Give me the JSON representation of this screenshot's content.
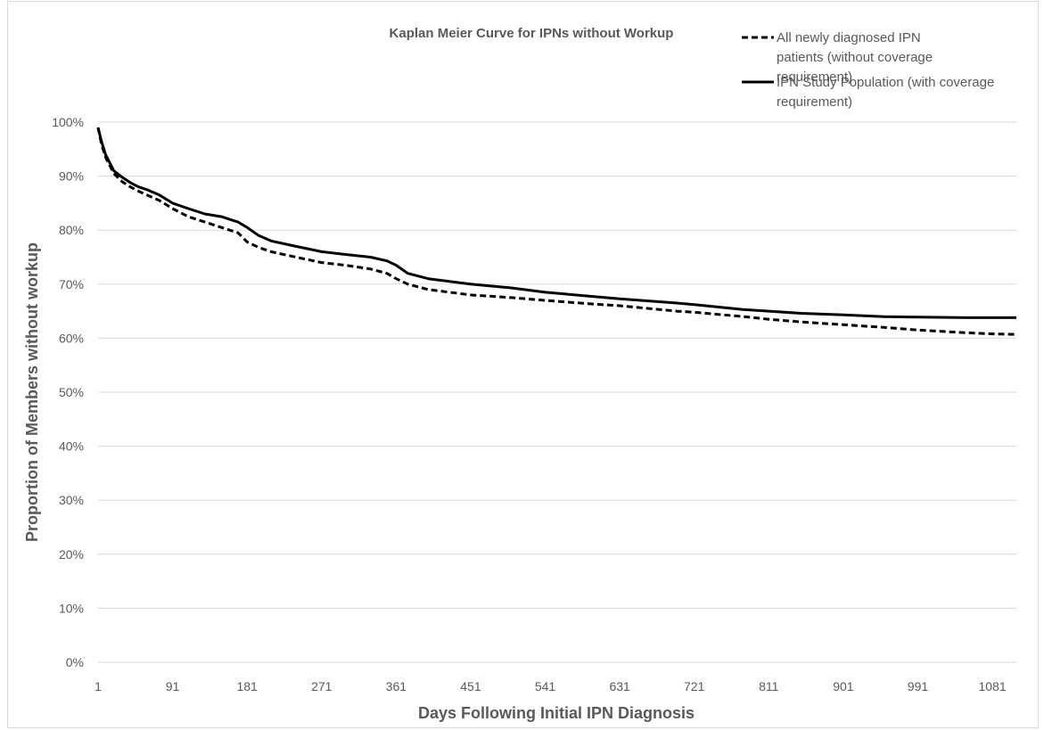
{
  "chart_data": {
    "type": "line",
    "title": "Kaplan Meier Curve for IPNs without Workup",
    "xlabel": "Days Following Initial IPN Diagnosis",
    "ylabel": "Proportion of Members without workup",
    "xlim": [
      1,
      1110
    ],
    "ylim": [
      0,
      100
    ],
    "x_ticks": [
      "1",
      "91",
      "181",
      "271",
      "361",
      "451",
      "541",
      "631",
      "721",
      "811",
      "901",
      "991",
      "1081"
    ],
    "y_ticks": [
      "0%",
      "10%",
      "20%",
      "30%",
      "40%",
      "50%",
      "60%",
      "70%",
      "80%",
      "90%",
      "100%"
    ],
    "grid": "horizontal",
    "legend_position": "top-right",
    "series": [
      {
        "name": "All newly diagnosed IPN patients (without coverage requirement)",
        "style": "dashed",
        "color": "#000000",
        "x": [
          1,
          5,
          10,
          15,
          20,
          30,
          40,
          50,
          60,
          75,
          91,
          110,
          130,
          150,
          170,
          181,
          195,
          210,
          240,
          271,
          300,
          330,
          350,
          361,
          375,
          400,
          451,
          500,
          541,
          600,
          631,
          700,
          721,
          780,
          811,
          850,
          901,
          950,
          991,
          1050,
          1081,
          1110
        ],
        "values": [
          99,
          96,
          93.5,
          92,
          90.5,
          89,
          88,
          87.2,
          86.5,
          85.5,
          84,
          82.5,
          81.5,
          80.5,
          79.5,
          77.8,
          76.8,
          76,
          75,
          74,
          73.5,
          72.8,
          72,
          71,
          70,
          69,
          68,
          67.5,
          67,
          66.3,
          66,
          65,
          64.8,
          64,
          63.5,
          63,
          62.5,
          62,
          61.5,
          61,
          60.8,
          60.7
        ]
      },
      {
        "name": "IPN Study Population (with coverage requirement)",
        "style": "solid",
        "color": "#000000",
        "x": [
          1,
          5,
          10,
          15,
          20,
          30,
          40,
          50,
          60,
          75,
          91,
          110,
          130,
          150,
          170,
          181,
          195,
          210,
          240,
          271,
          300,
          330,
          350,
          361,
          375,
          400,
          451,
          500,
          541,
          600,
          631,
          700,
          721,
          780,
          811,
          850,
          901,
          950,
          991,
          1050,
          1081,
          1110
        ],
        "values": [
          99,
          96.5,
          94,
          92.5,
          91,
          89.8,
          88.8,
          88,
          87.5,
          86.5,
          85,
          84,
          83,
          82.5,
          81.5,
          80.5,
          79,
          78,
          77,
          76,
          75.5,
          75,
          74.3,
          73.5,
          72,
          71,
          70,
          69.3,
          68.5,
          67.7,
          67.3,
          66.5,
          66.2,
          65.3,
          65,
          64.6,
          64.3,
          64,
          63.9,
          63.8,
          63.8,
          63.8
        ]
      }
    ]
  }
}
